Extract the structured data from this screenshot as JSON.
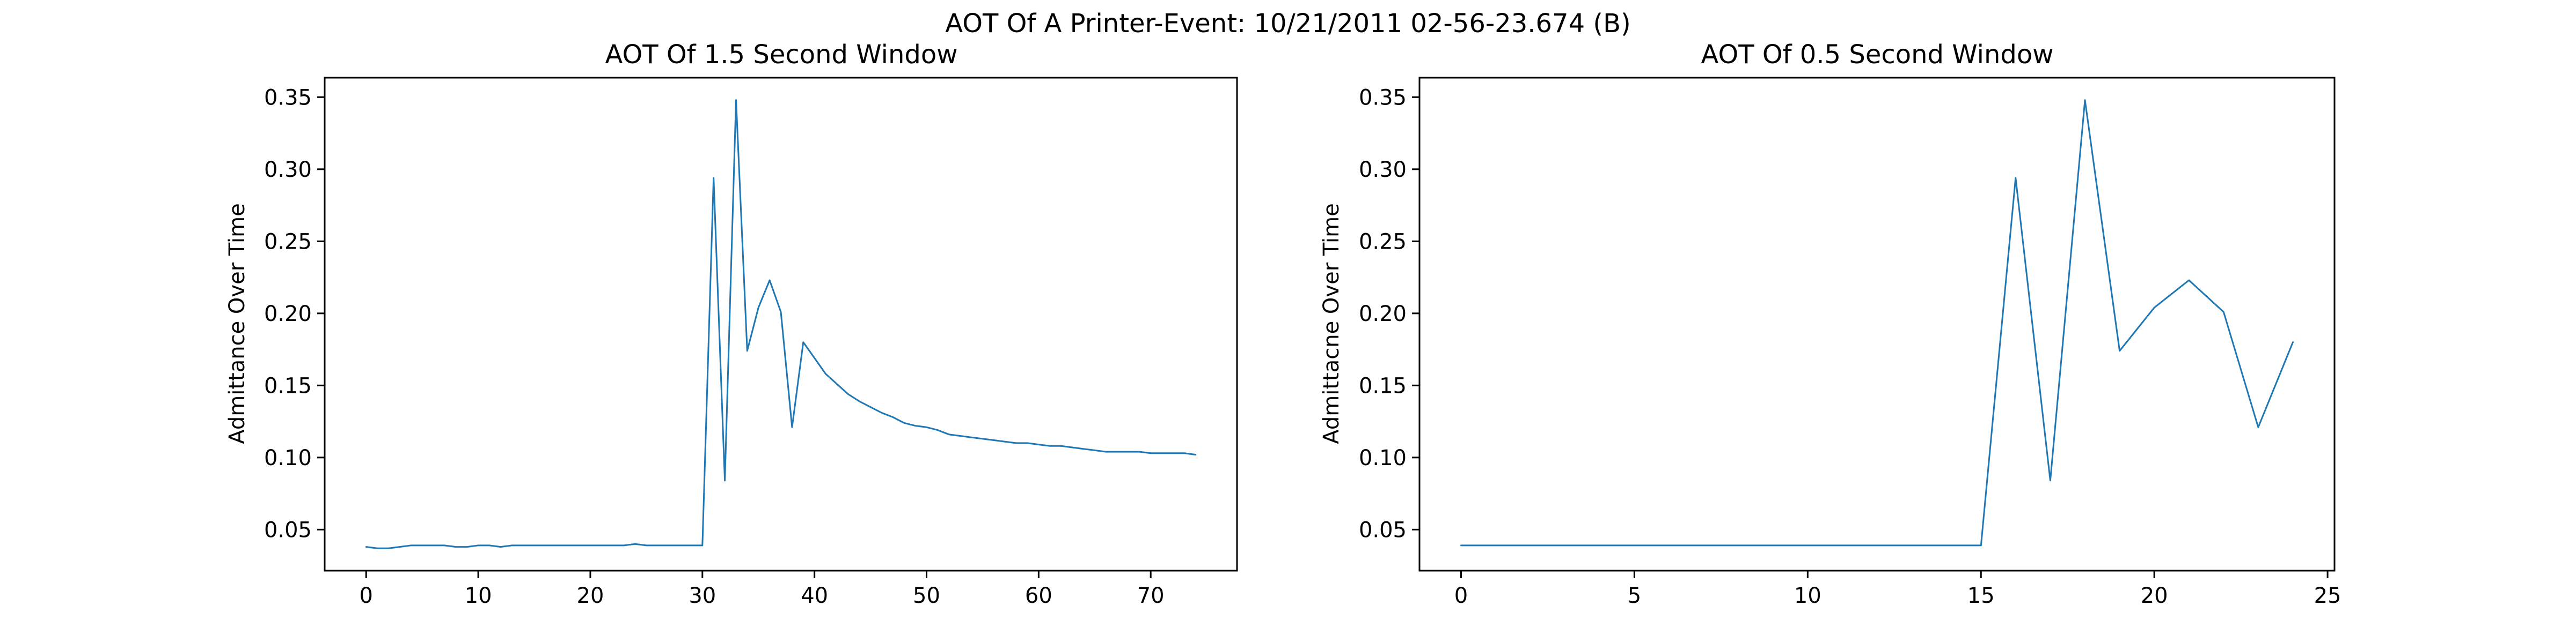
{
  "figure": {
    "suptitle": "AOT Of A Printer-Event: 10/21/2011 02-56-23.674 (B)"
  },
  "colors": {
    "series": "#1f77b4"
  },
  "chart_data": [
    {
      "type": "line",
      "title": "AOT Of 1.5 Second Window",
      "xlabel": "",
      "ylabel": "Admittance Over Time",
      "xlim": [
        -3.7,
        77.7
      ],
      "ylim": [
        0.0215,
        0.3635
      ],
      "xticks": [
        0,
        10,
        20,
        30,
        40,
        50,
        60,
        70
      ],
      "yticks": [
        0.05,
        0.1,
        0.15,
        0.2,
        0.25,
        0.3,
        0.35
      ],
      "ytick_labels": [
        "0.05",
        "0.10",
        "0.15",
        "0.20",
        "0.25",
        "0.30",
        "0.35"
      ],
      "series": [
        {
          "x": [
            0,
            1,
            2,
            3,
            4,
            5,
            6,
            7,
            8,
            9,
            10,
            11,
            12,
            13,
            14,
            15,
            16,
            17,
            18,
            19,
            20,
            21,
            22,
            23,
            24,
            25,
            26,
            27,
            28,
            29,
            30,
            31,
            32,
            33,
            34,
            35,
            36,
            37,
            38,
            39,
            40,
            41,
            42,
            43,
            44,
            45,
            46,
            47,
            48,
            49,
            50,
            51,
            52,
            53,
            54,
            55,
            56,
            57,
            58,
            59,
            60,
            61,
            62,
            63,
            64,
            65,
            66,
            67,
            68,
            69,
            70,
            71,
            72,
            73,
            74
          ],
          "y": [
            0.038,
            0.037,
            0.037,
            0.038,
            0.039,
            0.039,
            0.039,
            0.039,
            0.038,
            0.038,
            0.039,
            0.039,
            0.038,
            0.039,
            0.039,
            0.039,
            0.039,
            0.039,
            0.039,
            0.039,
            0.039,
            0.039,
            0.039,
            0.039,
            0.04,
            0.039,
            0.039,
            0.039,
            0.039,
            0.039,
            0.039,
            0.294,
            0.084,
            0.348,
            0.174,
            0.204,
            0.223,
            0.201,
            0.121,
            0.18,
            0.169,
            0.158,
            0.151,
            0.144,
            0.139,
            0.135,
            0.131,
            0.128,
            0.124,
            0.122,
            0.121,
            0.119,
            0.116,
            0.115,
            0.114,
            0.113,
            0.112,
            0.111,
            0.11,
            0.11,
            0.109,
            0.108,
            0.108,
            0.107,
            0.106,
            0.105,
            0.104,
            0.104,
            0.104,
            0.104,
            0.103,
            0.103,
            0.103,
            0.103,
            0.102
          ]
        }
      ]
    },
    {
      "type": "line",
      "title": "AOT Of 0.5 Second Window",
      "xlabel": "",
      "ylabel": "Admittacne Over Time",
      "xlim": [
        -1.2,
        25.2
      ],
      "ylim": [
        0.0215,
        0.3635
      ],
      "xticks": [
        0,
        5,
        10,
        15,
        20,
        25
      ],
      "yticks": [
        0.05,
        0.1,
        0.15,
        0.2,
        0.25,
        0.3,
        0.35
      ],
      "ytick_labels": [
        "0.05",
        "0.10",
        "0.15",
        "0.20",
        "0.25",
        "0.30",
        "0.35"
      ],
      "series": [
        {
          "x": [
            0,
            1,
            2,
            3,
            4,
            5,
            6,
            7,
            8,
            9,
            10,
            11,
            12,
            13,
            14,
            15,
            16,
            17,
            18,
            19,
            20,
            21,
            22,
            23,
            24
          ],
          "y": [
            0.039,
            0.039,
            0.039,
            0.039,
            0.039,
            0.039,
            0.039,
            0.039,
            0.039,
            0.039,
            0.039,
            0.039,
            0.039,
            0.039,
            0.039,
            0.039,
            0.294,
            0.084,
            0.348,
            0.174,
            0.204,
            0.223,
            0.201,
            0.121,
            0.18
          ]
        }
      ]
    }
  ]
}
